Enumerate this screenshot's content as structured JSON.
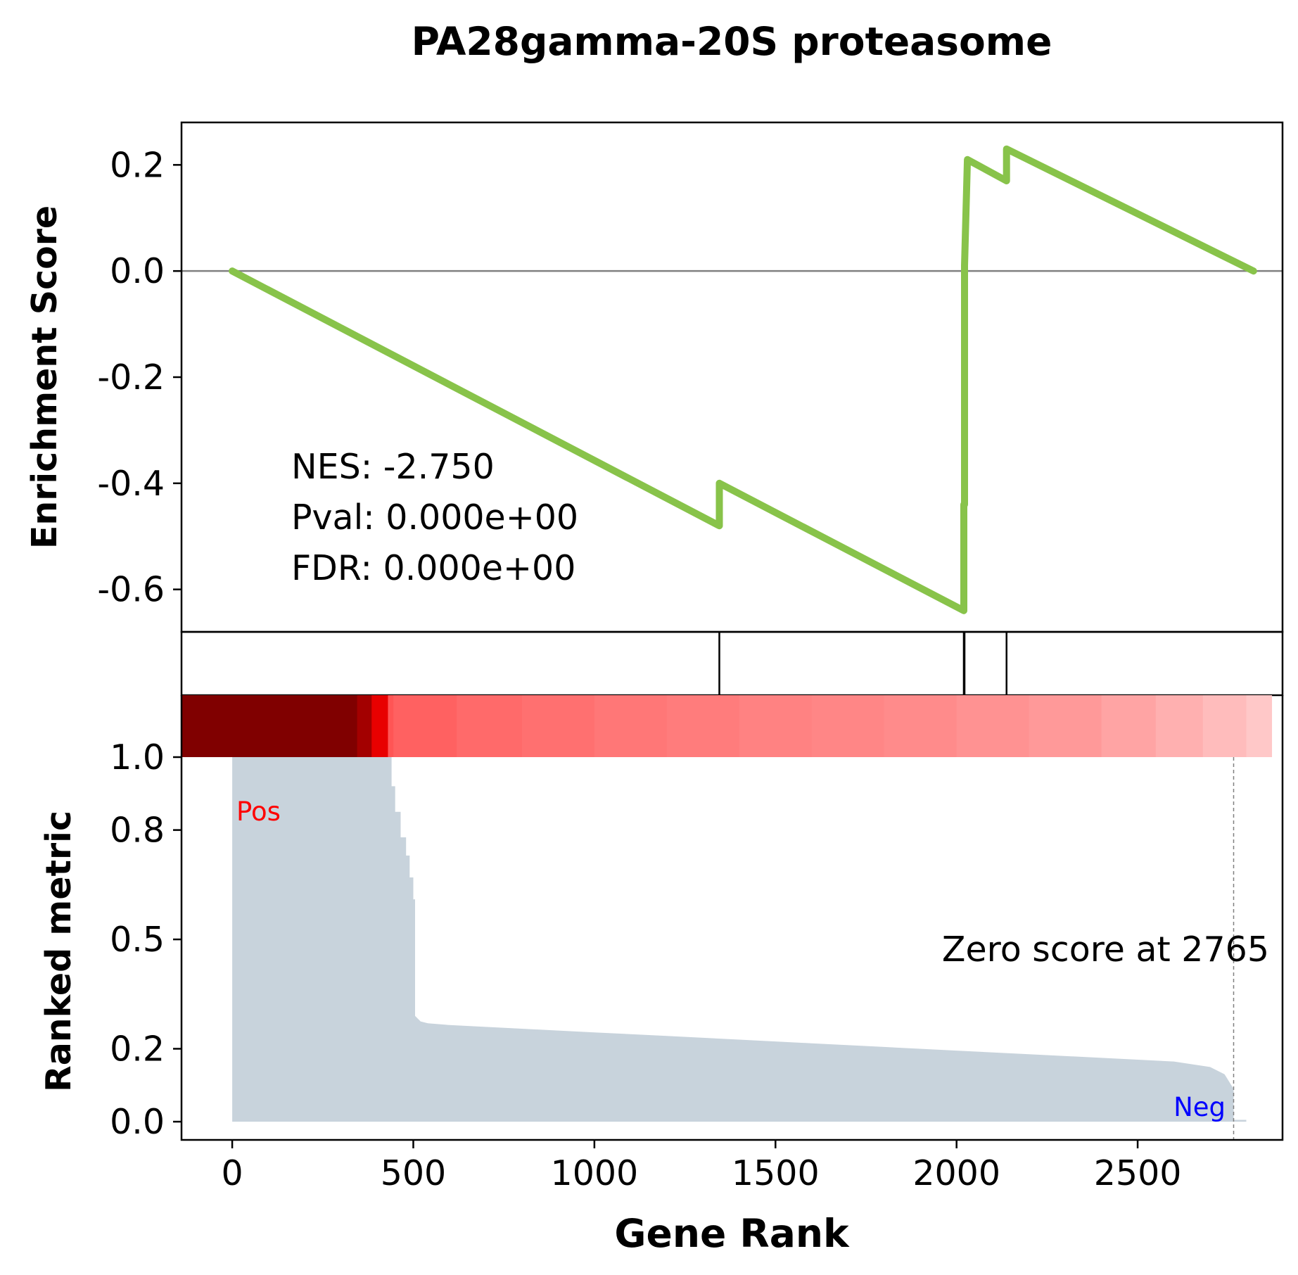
{
  "chart_data": {
    "type": "line",
    "title": "PA28gamma-20S proteasome",
    "xlabel": "Gene Rank",
    "xlim": [
      -140,
      2900
    ],
    "x_ticks": [
      0,
      500,
      1000,
      1500,
      2000,
      2500
    ],
    "colors": {
      "es_line": "#88c34a",
      "zero_line": "#808080",
      "metric_fill": "#c8d3dc",
      "pos_label": "#ff0000",
      "neg_label": "#0000ff",
      "zero_marker": "#808080"
    },
    "enrichment": {
      "ylabel": "Enrichment Score",
      "ylim": [
        -0.68,
        0.28
      ],
      "y_ticks": [
        "0.2",
        "0.0",
        "-0.2",
        "-0.4",
        "-0.6"
      ],
      "y_tick_values": [
        0.2,
        0.0,
        -0.2,
        -0.4,
        -0.6
      ],
      "x": [
        0,
        1345,
        1345,
        2020,
        2020,
        2022,
        2022,
        2030,
        2138,
        2138,
        2820
      ],
      "y": [
        0.0,
        -0.48,
        -0.4,
        -0.64,
        -0.44,
        -0.44,
        0.01,
        0.21,
        0.17,
        0.23,
        0.0
      ],
      "stats": {
        "nes": "NES: -2.750",
        "pval": "Pval: 0.000e+00",
        "fdr": "FDR: 0.000e+00"
      }
    },
    "hits": {
      "positions": [
        1345,
        2020,
        2022,
        2138
      ]
    },
    "heatmap": {
      "bands": [
        {
          "start": -140,
          "end": 345,
          "color": "#800000"
        },
        {
          "start": 345,
          "end": 385,
          "color": "#a30000"
        },
        {
          "start": 385,
          "end": 430,
          "color": "#e80000"
        },
        {
          "start": 430,
          "end": 445,
          "color": "#ff5555"
        },
        {
          "start": 445,
          "end": 620,
          "color": "#ff6161"
        },
        {
          "start": 620,
          "end": 800,
          "color": "#ff6a6a"
        },
        {
          "start": 800,
          "end": 1000,
          "color": "#ff7070"
        },
        {
          "start": 1000,
          "end": 1200,
          "color": "#ff7777"
        },
        {
          "start": 1200,
          "end": 1400,
          "color": "#ff7c7c"
        },
        {
          "start": 1400,
          "end": 1600,
          "color": "#ff8282"
        },
        {
          "start": 1600,
          "end": 1800,
          "color": "#ff8686"
        },
        {
          "start": 1800,
          "end": 2000,
          "color": "#ff8b8b"
        },
        {
          "start": 2000,
          "end": 2200,
          "color": "#ff9292"
        },
        {
          "start": 2200,
          "end": 2400,
          "color": "#ff9999"
        },
        {
          "start": 2400,
          "end": 2550,
          "color": "#ffa4a4"
        },
        {
          "start": 2550,
          "end": 2680,
          "color": "#ffb0b0"
        },
        {
          "start": 2680,
          "end": 2800,
          "color": "#ffbcbc"
        },
        {
          "start": 2800,
          "end": 2870,
          "color": "#ffc8c8"
        }
      ]
    },
    "ranked_metric": {
      "ylabel": "Ranked metric",
      "ylim": [
        -0.05,
        1.0
      ],
      "y_ticks": [
        "1.0",
        "0.8",
        "0.5",
        "0.2",
        "0.0"
      ],
      "y_tick_values": [
        1.0,
        0.8,
        0.5,
        0.2,
        0.0
      ],
      "x": [
        0,
        440,
        440,
        450,
        450,
        465,
        465,
        480,
        480,
        490,
        490,
        500,
        500,
        505,
        505,
        520,
        540,
        600,
        700,
        800,
        1000,
        1200,
        1400,
        1600,
        1800,
        2000,
        2200,
        2400,
        2600,
        2700,
        2740,
        2765,
        2765,
        2800
      ],
      "y": [
        1.0,
        1.0,
        0.92,
        0.92,
        0.85,
        0.85,
        0.78,
        0.78,
        0.73,
        0.73,
        0.67,
        0.67,
        0.61,
        0.61,
        0.29,
        0.275,
        0.27,
        0.265,
        0.26,
        0.255,
        0.245,
        0.235,
        0.225,
        0.215,
        0.205,
        0.195,
        0.185,
        0.175,
        0.165,
        0.15,
        0.13,
        0.09,
        0.005,
        0.005
      ],
      "pos_label": "Pos",
      "neg_label": "Neg",
      "zero_score_text": "Zero score at 2765",
      "zero_score_position": 2765
    }
  }
}
